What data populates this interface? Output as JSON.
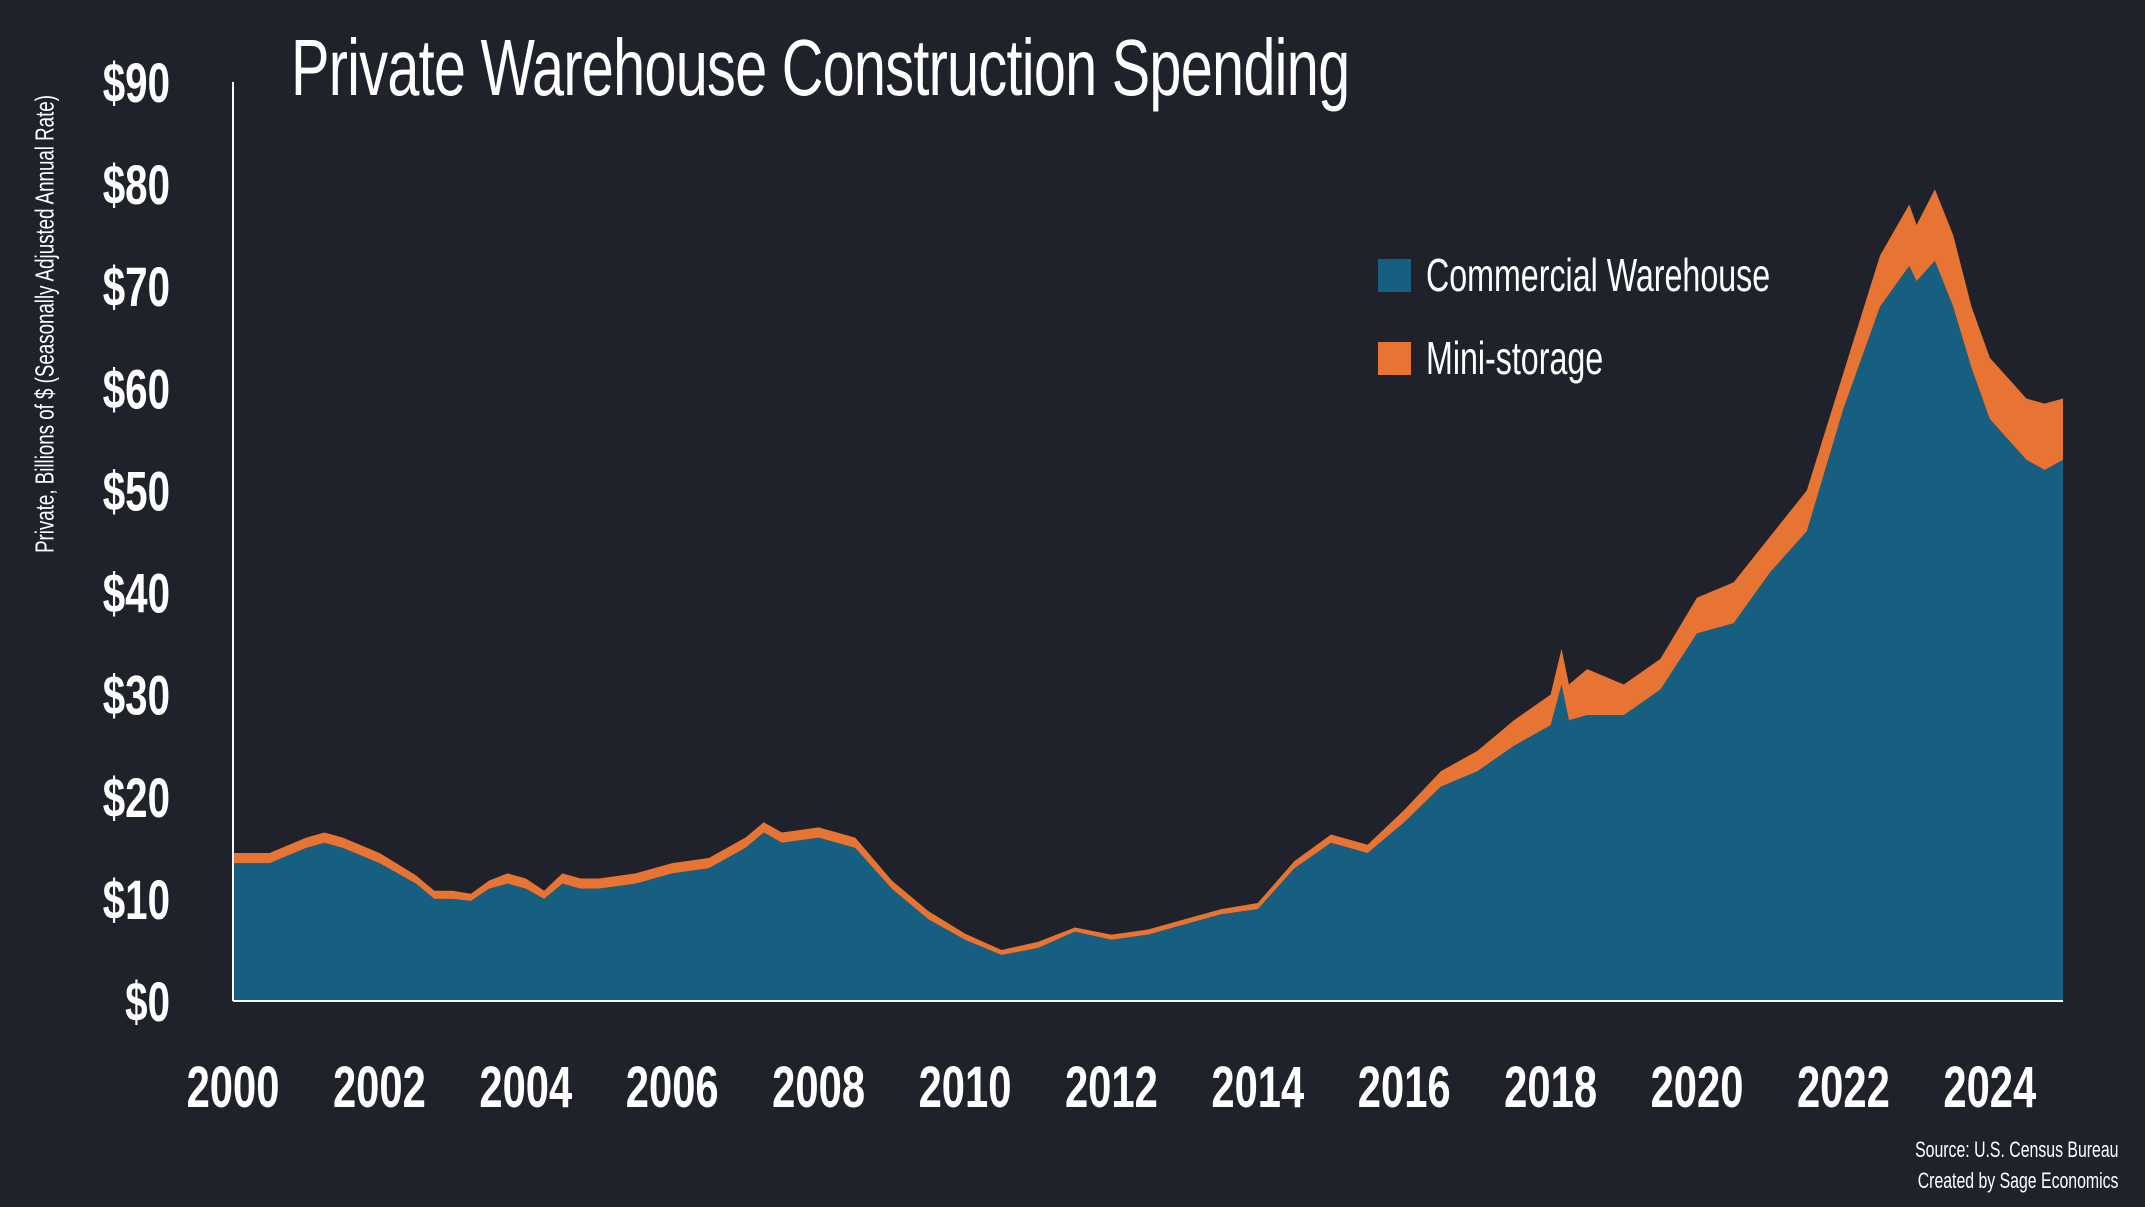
{
  "chart_data": {
    "type": "area",
    "stacked": true,
    "title": "Private Warehouse Construction Spending",
    "ylabel": "Private, Billions of $ (Seasonally Adjusted Annual Rate)",
    "xlabel": "",
    "xlim": [
      2000,
      2025
    ],
    "ylim": [
      0,
      90
    ],
    "yticks": [
      0,
      10,
      20,
      30,
      40,
      50,
      60,
      70,
      80,
      90
    ],
    "ytick_labels": [
      "$0",
      "$10",
      "$20",
      "$30",
      "$40",
      "$50",
      "$60",
      "$70",
      "$80",
      "$90"
    ],
    "xticks": [
      2000,
      2002,
      2004,
      2006,
      2008,
      2010,
      2012,
      2014,
      2016,
      2018,
      2020,
      2022,
      2024
    ],
    "xtick_labels": [
      "2000",
      "2002",
      "2004",
      "2006",
      "2008",
      "2010",
      "2012",
      "2014",
      "2016",
      "2018",
      "2020",
      "2022",
      "2024"
    ],
    "grid": false,
    "legend_position": "top-right",
    "x": [
      2000.0,
      2000.5,
      2001.0,
      2001.25,
      2001.5,
      2002.0,
      2002.5,
      2002.75,
      2003.0,
      2003.25,
      2003.5,
      2003.75,
      2004.0,
      2004.25,
      2004.5,
      2004.75,
      2005.0,
      2005.5,
      2006.0,
      2006.5,
      2007.0,
      2007.25,
      2007.5,
      2008.0,
      2008.5,
      2009.0,
      2009.5,
      2010.0,
      2010.5,
      2011.0,
      2011.5,
      2012.0,
      2012.5,
      2013.0,
      2013.5,
      2014.0,
      2014.5,
      2015.0,
      2015.5,
      2016.0,
      2016.5,
      2017.0,
      2017.5,
      2018.0,
      2018.15,
      2018.25,
      2018.5,
      2019.0,
      2019.5,
      2020.0,
      2020.5,
      2021.0,
      2021.5,
      2022.0,
      2022.5,
      2022.9,
      2023.0,
      2023.25,
      2023.5,
      2023.75,
      2024.0,
      2024.5,
      2024.75,
      2025.0
    ],
    "series": [
      {
        "name": "Commercial Warehouse",
        "color": "#165f80",
        "values": [
          13.5,
          13.5,
          15,
          15.5,
          15,
          13.5,
          11.5,
          10,
          10,
          9.8,
          11,
          11.5,
          11,
          10,
          11.5,
          11,
          11,
          11.5,
          12.5,
          13,
          15,
          16.5,
          15.5,
          16,
          15,
          11,
          8,
          6,
          4.5,
          5.2,
          6.8,
          6,
          6.5,
          7.5,
          8.5,
          9,
          13,
          15.5,
          14.5,
          17.5,
          21,
          22.5,
          25,
          27,
          31,
          27.5,
          28,
          28,
          30.5,
          36,
          37,
          42,
          46,
          58,
          68,
          72,
          70.5,
          72.5,
          68,
          62,
          57,
          53,
          52,
          53
        ]
      },
      {
        "name": "Mini-storage",
        "color": "#e87433",
        "values": [
          1,
          1,
          1,
          1,
          1,
          1,
          0.8,
          0.8,
          0.8,
          0.7,
          0.8,
          1,
          1,
          0.8,
          1,
          1,
          1,
          1,
          1,
          1,
          1,
          1,
          1,
          1,
          1,
          0.8,
          0.8,
          0.6,
          0.5,
          0.6,
          0.4,
          0.5,
          0.5,
          0.5,
          0.5,
          0.6,
          0.7,
          0.8,
          0.8,
          1.2,
          1.5,
          2,
          2.5,
          3,
          3.5,
          3.5,
          4.5,
          3,
          3,
          3.5,
          4,
          3.5,
          4,
          3.5,
          5,
          6,
          5.5,
          7,
          7,
          6,
          6,
          6,
          6.5,
          6
        ]
      }
    ],
    "annotations": [
      "Source: U.S. Census Bureau",
      "Created by Sage Economics"
    ]
  }
}
